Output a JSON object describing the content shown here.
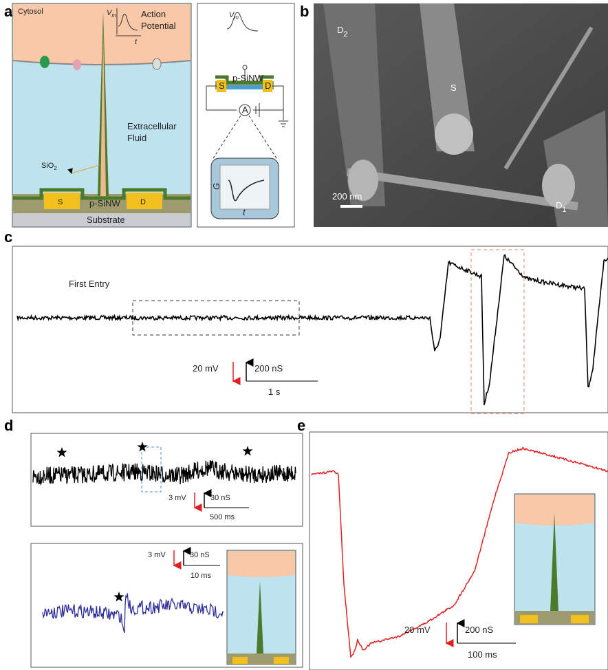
{
  "panel_labels": [
    "a",
    "b",
    "c",
    "d",
    "e"
  ],
  "panel_a": {
    "cytosol": "Cytosol",
    "action_potential": [
      "Action",
      "Potential"
    ],
    "vm": {
      "symbol": "V",
      "sub": "m"
    },
    "t": "t",
    "extracellular_fluid": [
      "Extracellular",
      "Fluid"
    ],
    "sio2": {
      "symbol": "SiO",
      "sub": "2"
    },
    "source": "S",
    "drain": "D",
    "nanowire": "p-SiNW",
    "substrate": "Substrate",
    "inset": {
      "vm": {
        "symbol": "V",
        "sub": "m"
      },
      "source": "S",
      "drain": "D",
      "nanowire": "p-SiNW",
      "ammeter": "A",
      "g_axis": "G",
      "t_axis": "t"
    }
  },
  "panel_b": {
    "d2": {
      "symbol": "D",
      "sub": "2"
    },
    "source": "S",
    "scale_bar": "200 nm",
    "d1": {
      "symbol": "D",
      "sub": "1"
    }
  },
  "panel_c": {
    "annotation": "First Entry",
    "scale_voltage": "20 mV",
    "scale_conductance": "200 nS",
    "scale_time": "1 s"
  },
  "panel_d": {
    "top": {
      "scale_voltage": "3 mV",
      "scale_conductance": "30 nS",
      "scale_time": "500 ms"
    },
    "bottom": {
      "scale_voltage": "3 mV",
      "scale_conductance": "30 nS",
      "scale_time": "10 ms"
    }
  },
  "panel_e": {
    "scale_voltage": "20 mV",
    "scale_conductance": "200 nS",
    "scale_time": "100 ms"
  }
}
